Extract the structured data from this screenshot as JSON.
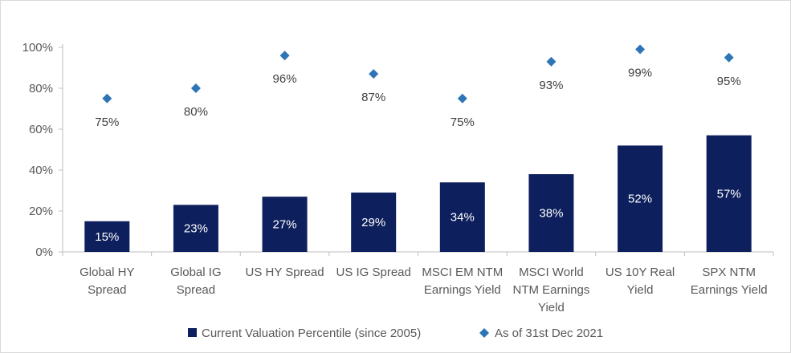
{
  "chart_data": {
    "type": "bar",
    "categories": [
      [
        "Global HY",
        "Spread"
      ],
      [
        "Global IG",
        "Spread"
      ],
      [
        "US HY Spread"
      ],
      [
        "US IG Spread"
      ],
      [
        "MSCI EM NTM",
        "Earnings Yield"
      ],
      [
        "MSCI World",
        "NTM Earnings",
        "Yield"
      ],
      [
        "US 10Y Real",
        "Yield"
      ],
      [
        "SPX NTM",
        "Earnings Yield"
      ]
    ],
    "series": [
      {
        "name": "Current Valuation Percentile (since 2005)",
        "kind": "bar",
        "color": "#0d1f5c",
        "values": [
          15,
          23,
          27,
          29,
          34,
          38,
          52,
          57
        ],
        "labels": [
          "15%",
          "23%",
          "27%",
          "29%",
          "34%",
          "38%",
          "52%",
          "57%"
        ]
      },
      {
        "name": "As of 31st Dec 2021",
        "kind": "marker",
        "marker": "diamond",
        "color": "#2e75b6",
        "values": [
          75,
          80,
          96,
          87,
          75,
          93,
          99,
          95
        ],
        "labels": [
          "75%",
          "80%",
          "96%",
          "87%",
          "75%",
          "93%",
          "99%",
          "95%"
        ]
      }
    ],
    "yticks": [
      "0%",
      "20%",
      "40%",
      "60%",
      "80%",
      "100%"
    ],
    "ylim": [
      0,
      100
    ],
    "grid": false,
    "legend_position": "bottom"
  }
}
